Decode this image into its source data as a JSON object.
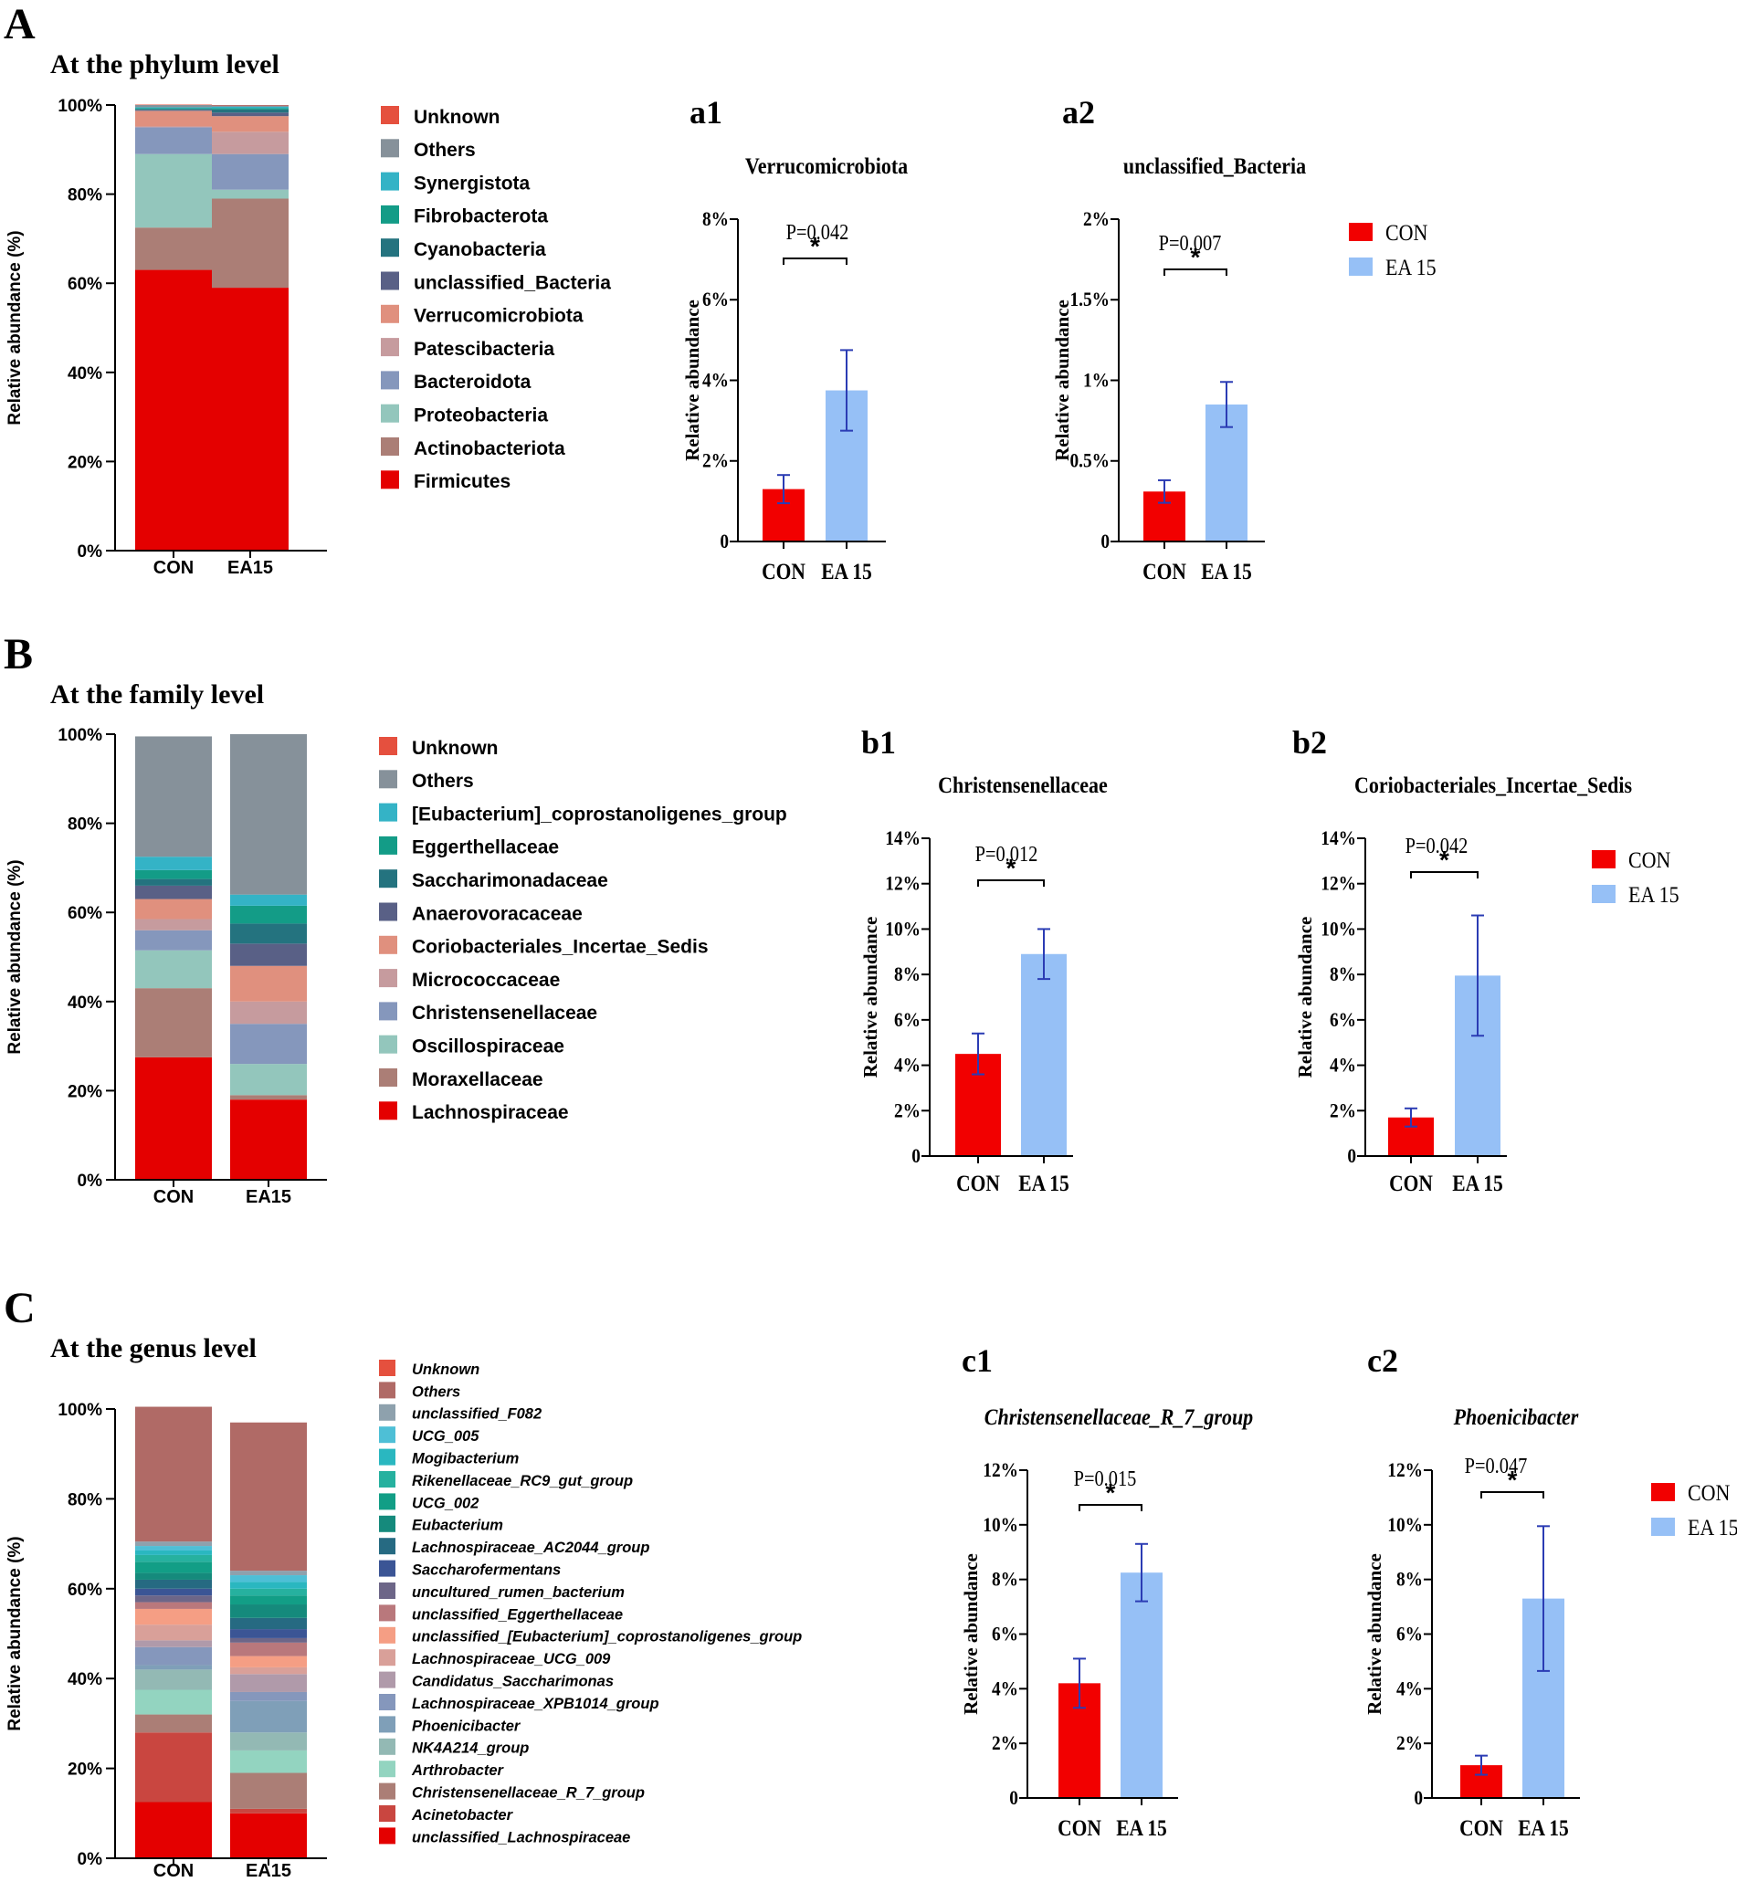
{
  "colors": {
    "con": "#f20000",
    "ea15": "#96c0f6",
    "errorbar": "#2b3cb4",
    "axis": "#000000"
  },
  "panels": [
    {
      "letter": "A",
      "title": "At the phylum level",
      "stack": {
        "type": "stacked_bar",
        "ylabel": "Relative abundance (%)",
        "yticks": [
          "0%",
          "20%",
          "40%",
          "60%",
          "80%",
          "100%"
        ],
        "categories": [
          "CON",
          "EA15"
        ],
        "series": [
          {
            "name": "Firmicutes",
            "color": "#e40000",
            "values": [
              63.0,
              59.0
            ]
          },
          {
            "name": "Actinobacteriota",
            "color": "#ab7e76",
            "values": [
              9.5,
              20.0
            ]
          },
          {
            "name": "Proteobacteria",
            "color": "#93c6bc",
            "values": [
              16.5,
              2.0
            ]
          },
          {
            "name": "Bacteroidota",
            "color": "#8597bc",
            "values": [
              6.0,
              8.0
            ]
          },
          {
            "name": "Patescibacteria",
            "color": "#c69b9e",
            "values": [
              0.2,
              5.0
            ]
          },
          {
            "name": "Verrucomicrobiota",
            "color": "#e0907e",
            "values": [
              3.5,
              3.5
            ]
          },
          {
            "name": "unclassified_Bacteria",
            "color": "#596086",
            "values": [
              0.2,
              0.8
            ]
          },
          {
            "name": "Cyanobacteria",
            "color": "#24737f",
            "values": [
              0.2,
              0.7
            ]
          },
          {
            "name": "Fibrobacterota",
            "color": "#139c87",
            "values": [
              0.2,
              0.3
            ]
          },
          {
            "name": "Synergistota",
            "color": "#34b3c6",
            "values": [
              0.2,
              0.3
            ]
          },
          {
            "name": "Others",
            "color": "#86919a",
            "values": [
              0.5,
              0.3
            ]
          },
          {
            "name": "Unknown",
            "color": "#e5503e",
            "values": [
              0.1,
              0.1
            ]
          }
        ]
      },
      "bars": [
        {
          "tag": "a1",
          "title": "Verrucomicrobiota",
          "italic": false,
          "pvalue": "P=0.042",
          "sig": "*",
          "ylabel": "Relative abundance",
          "yticks": [
            "0",
            "2%",
            "4%",
            "6%",
            "8%"
          ],
          "ymax": 8,
          "categories": [
            "CON",
            "EA 15"
          ],
          "values": [
            1.3,
            3.75
          ],
          "errors": [
            0.35,
            1.0
          ]
        },
        {
          "tag": "a2",
          "title": "unclassified_Bacteria",
          "italic": false,
          "pvalue": "P=0.007",
          "sig": "*",
          "ylabel": "Relative abundance",
          "yticks": [
            "0",
            "0.5%",
            "1%",
            "1.5%",
            "2%"
          ],
          "ymax": 2,
          "categories": [
            "CON",
            "EA 15"
          ],
          "values": [
            0.31,
            0.85
          ],
          "errors": [
            0.07,
            0.14
          ]
        }
      ],
      "legend": [
        "CON",
        "EA 15"
      ]
    },
    {
      "letter": "B",
      "title": "At the family level",
      "stack": {
        "type": "stacked_bar",
        "ylabel": "Relative abundance (%)",
        "yticks": [
          "0%",
          "20%",
          "40%",
          "60%",
          "80%",
          "100%"
        ],
        "categories": [
          "CON",
          "EA15"
        ],
        "series": [
          {
            "name": "Lachnospiraceae",
            "color": "#e40000",
            "values": [
              27.5,
              18.0
            ]
          },
          {
            "name": "Moraxellaceae",
            "color": "#ab7e76",
            "values": [
              15.5,
              1.0
            ]
          },
          {
            "name": "Oscillospiraceae",
            "color": "#93c6bc",
            "values": [
              8.5,
              7.0
            ]
          },
          {
            "name": "Christensenellaceae",
            "color": "#8597bc",
            "values": [
              4.5,
              9.0
            ]
          },
          {
            "name": "Micrococcaceae",
            "color": "#c69b9e",
            "values": [
              2.5,
              5.0
            ]
          },
          {
            "name": "Coriobacteriales_Incertae_Sedis",
            "color": "#e0907e",
            "values": [
              4.5,
              8.0
            ]
          },
          {
            "name": "Anaerovoracaceae",
            "color": "#596086",
            "values": [
              3.0,
              5.0
            ]
          },
          {
            "name": "Saccharimonadaceae",
            "color": "#24737f",
            "values": [
              1.5,
              4.5
            ]
          },
          {
            "name": "Eggerthellaceae",
            "color": "#139c87",
            "values": [
              2.0,
              4.0
            ]
          },
          {
            "name": "[Eubacterium]_coprostanoligenes_group",
            "color": "#34b3c6",
            "values": [
              3.0,
              2.5
            ]
          },
          {
            "name": "Others",
            "color": "#86919a",
            "values": [
              27.0,
              36.0
            ]
          },
          {
            "name": "Unknown",
            "color": "#e5503e",
            "values": [
              0.0,
              0.0
            ]
          }
        ]
      },
      "bars": [
        {
          "tag": "b1",
          "title": "Christensenellaceae",
          "italic": false,
          "pvalue": "P=0.012",
          "sig": "*",
          "ylabel": "Relative abundance",
          "yticks": [
            "0",
            "2%",
            "4%",
            "6%",
            "8%",
            "10%",
            "12%",
            "14%"
          ],
          "ymax": 14,
          "categories": [
            "CON",
            "EA 15"
          ],
          "values": [
            4.5,
            8.9
          ],
          "errors": [
            0.9,
            1.1
          ]
        },
        {
          "tag": "b2",
          "title": "Coriobacteriales_Incertae_Sedis",
          "italic": false,
          "pvalue": "P=0.042",
          "sig": "*",
          "ylabel": "Relative abundance",
          "yticks": [
            "0",
            "2%",
            "4%",
            "6%",
            "8%",
            "10%",
            "12%",
            "14%"
          ],
          "ymax": 14,
          "categories": [
            "CON",
            "EA 15"
          ],
          "values": [
            1.7,
            7.95
          ],
          "errors": [
            0.4,
            2.65
          ]
        }
      ],
      "legend": [
        "CON",
        "EA 15"
      ]
    },
    {
      "letter": "C",
      "title": "At the genus level",
      "stack": {
        "type": "stacked_bar",
        "ylabel": "Relative abundance (%)",
        "yticks": [
          "0%",
          "20%",
          "40%",
          "60%",
          "80%",
          "100%"
        ],
        "categories": [
          "CON",
          "EA15"
        ],
        "series": [
          {
            "name": "unclassified_Lachnospiraceae",
            "color": "#e40000",
            "values": [
              12.5,
              10.0
            ]
          },
          {
            "name": "Acinetobacter",
            "color": "#c94640",
            "values": [
              15.5,
              1.0
            ]
          },
          {
            "name": "Christensenellaceae_R_7_group",
            "color": "#ab7e76",
            "values": [
              4.0,
              8.0
            ]
          },
          {
            "name": "Arthrobacter",
            "color": "#93d4c0",
            "values": [
              5.5,
              5.0
            ]
          },
          {
            "name": "NK4A214_group",
            "color": "#93b9b4",
            "values": [
              4.5,
              4.0
            ]
          },
          {
            "name": "Phoenicibacter",
            "color": "#7f9fb8",
            "values": [
              1.0,
              7.0
            ]
          },
          {
            "name": "Lachnospiraceae_XPB1014_group",
            "color": "#8597bc",
            "values": [
              4.0,
              2.0
            ]
          },
          {
            "name": "Candidatus_Saccharimonas",
            "color": "#b09aaa",
            "values": [
              1.5,
              4.0
            ]
          },
          {
            "name": "Lachnospiraceae_UCG_009",
            "color": "#d9a099",
            "values": [
              3.5,
              1.5
            ]
          },
          {
            "name": "unclassified_[Eubacterium]_coprostanoligenes_group",
            "color": "#f59e84",
            "values": [
              3.5,
              2.5
            ]
          },
          {
            "name": "unclassified_Eggerthellaceae",
            "color": "#b9787c",
            "values": [
              1.5,
              3.0
            ]
          },
          {
            "name": "uncultured_rumen_bacterium",
            "color": "#6d6688",
            "values": [
              1.5,
              1.0
            ]
          },
          {
            "name": "Saccharofermentans",
            "color": "#3b5595",
            "values": [
              1.5,
              2.0
            ]
          },
          {
            "name": "Lachnospiraceae_AC2044_group",
            "color": "#266a82",
            "values": [
              2.0,
              2.5
            ]
          },
          {
            "name": "Eubacterium",
            "color": "#158a7c",
            "values": [
              1.5,
              3.0
            ]
          },
          {
            "name": "UCG_002",
            "color": "#129e86",
            "values": [
              2.5,
              2.0
            ]
          },
          {
            "name": "Rikenellaceae_RC9_gut_group",
            "color": "#26b19f",
            "values": [
              1.5,
              1.5
            ]
          },
          {
            "name": "Mogibacterium",
            "color": "#2ab7c0",
            "values": [
              1.0,
              1.5
            ]
          },
          {
            "name": "UCG_005",
            "color": "#4ebfd6",
            "values": [
              1.0,
              1.5
            ]
          },
          {
            "name": "unclassified_F082",
            "color": "#8ea1ad",
            "values": [
              1.0,
              1.0
            ]
          },
          {
            "name": "Others",
            "color": "#b06a66",
            "values": [
              30.0,
              33.0
            ]
          },
          {
            "name": "Unknown",
            "color": "#e5503e",
            "values": [
              0.0,
              0.0
            ]
          }
        ]
      },
      "bars": [
        {
          "tag": "c1",
          "title": "Christensenellaceae_R_7_group",
          "italic": true,
          "pvalue": "P=0.015",
          "sig": "*",
          "ylabel": "Relative abundance",
          "yticks": [
            "0",
            "2%",
            "4%",
            "6%",
            "8%",
            "10%",
            "12%"
          ],
          "ymax": 12,
          "categories": [
            "CON",
            "EA 15"
          ],
          "values": [
            4.2,
            8.25
          ],
          "errors": [
            0.9,
            1.05
          ]
        },
        {
          "tag": "c2",
          "title": "Phoenicibacter",
          "italic": true,
          "pvalue": "P=0.047",
          "sig": "*",
          "ylabel": "Relative abundance",
          "yticks": [
            "0",
            "2%",
            "4%",
            "6%",
            "8%",
            "10%",
            "12%"
          ],
          "ymax": 12,
          "categories": [
            "CON",
            "EA 15"
          ],
          "values": [
            1.2,
            7.3
          ],
          "errors": [
            0.35,
            2.65
          ]
        }
      ],
      "legend": [
        "CON",
        "EA 15"
      ]
    }
  ]
}
